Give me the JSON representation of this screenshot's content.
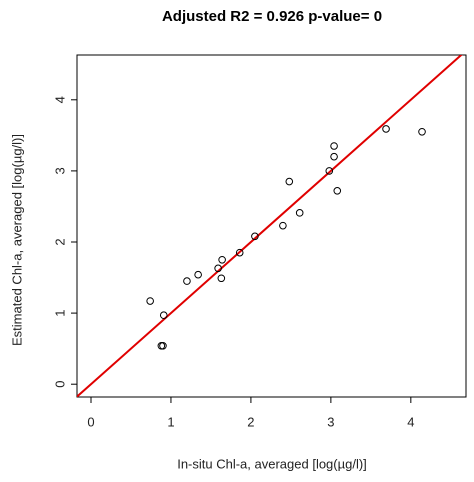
{
  "chart_data": {
    "type": "scatter",
    "title": "Adjusted R2 =  0.926 p-value= 0",
    "x_label": "In-situ Chl-a, averaged [log(µg/l)]",
    "y_label": "Estimated Chl-a, averaged [log(µg/l)]",
    "x": [
      0.74,
      0.91,
      0.88,
      0.9,
      1.2,
      1.34,
      1.59,
      1.64,
      1.63,
      1.86,
      2.05,
      2.4,
      2.48,
      2.61,
      2.98,
      3.04,
      3.04,
      3.08,
      3.69,
      4.14
    ],
    "y": [
      1.17,
      0.97,
      0.54,
      0.54,
      1.45,
      1.54,
      1.63,
      1.75,
      1.49,
      1.85,
      2.08,
      2.23,
      2.85,
      2.41,
      3.0,
      3.35,
      3.2,
      2.72,
      3.59,
      3.55
    ],
    "color": "#000000",
    "identity_line_color": "#e00000",
    "xlim": [
      -0.175,
      4.69
    ],
    "ylim": [
      -0.18,
      4.63
    ],
    "xticks": [
      0,
      1,
      2,
      3,
      4
    ],
    "yticks": [
      0,
      1,
      2,
      3,
      4
    ]
  }
}
